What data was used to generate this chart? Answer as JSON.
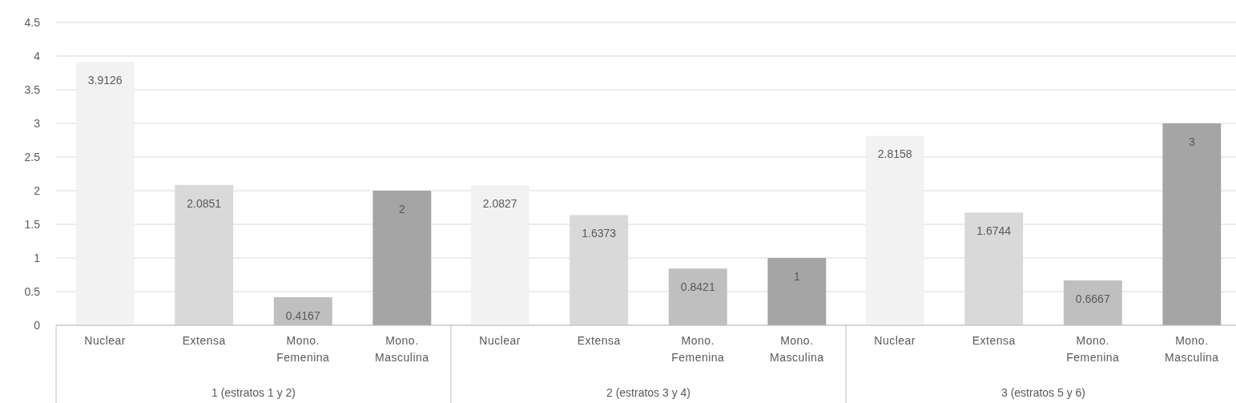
{
  "chart_data": {
    "type": "bar",
    "categories": [
      "1 (estratos 1 y 2)",
      "2 (estratos 3 y 4)",
      "3 (estratos 5 y 6)"
    ],
    "series": [
      {
        "name": "Nuclear",
        "color": "#f2f2f2",
        "values": [
          3.9126,
          2.0827,
          2.8158
        ]
      },
      {
        "name": "Extensa",
        "color": "#d9d9d9",
        "values": [
          2.0851,
          1.6373,
          1.6744
        ]
      },
      {
        "name": "Mono. Femenina",
        "color": "#bfbfbf",
        "values": [
          0.4167,
          0.8421,
          0.6667
        ]
      },
      {
        "name": "Mono. Masculina",
        "color": "#a5a5a5",
        "values": [
          2,
          1,
          3
        ]
      }
    ],
    "ylim": [
      0,
      4.5
    ],
    "yticks": [
      0,
      0.5,
      1,
      1.5,
      2,
      2.5,
      3,
      3.5,
      4,
      4.5
    ],
    "grid": "y",
    "data_labels": true
  }
}
